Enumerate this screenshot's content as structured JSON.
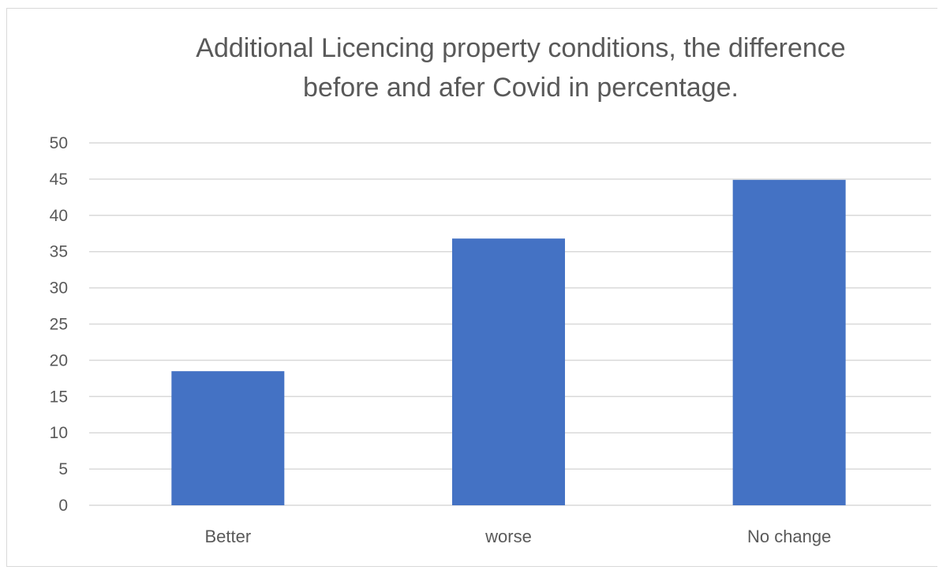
{
  "chart_data": {
    "type": "bar",
    "title_lines": [
      "Additional Licencing property conditions, the difference",
      "before and afer Covid in percentage."
    ],
    "categories": [
      "Better",
      "worse",
      "No change"
    ],
    "values": [
      18.5,
      36.8,
      44.9
    ],
    "yticks": [
      "0",
      "5",
      "10",
      "15",
      "20",
      "25",
      "30",
      "35",
      "40",
      "45",
      "50"
    ],
    "ylim": [
      0,
      50
    ],
    "xlabel": "",
    "ylabel": "",
    "grid": true,
    "legend": "none",
    "bar_color": "#4472C4",
    "grid_color": "#d9d9d9"
  }
}
